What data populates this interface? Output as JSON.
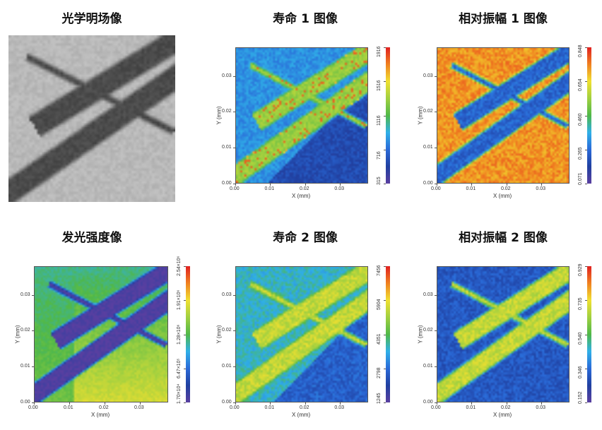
{
  "panels": [
    {
      "id": "optical",
      "title": "光学明场像",
      "type": "image"
    },
    {
      "id": "lifetime1",
      "title": "寿命 1 图像",
      "colorbar": [
        "315",
        "716",
        "1116",
        "1516",
        "1916"
      ]
    },
    {
      "id": "amplitude1",
      "title": "相对振幅 1 图像",
      "colorbar": [
        "0.071",
        "0.265",
        "0.460",
        "0.654",
        "0.848"
      ]
    },
    {
      "id": "luminescence",
      "title": "发光强度像",
      "colorbar": [
        "1.70×10⁴",
        "6.47×10⁵",
        "1.28×10⁶",
        "1.91×10⁶",
        "2.54×10⁶"
      ]
    },
    {
      "id": "lifetime2",
      "title": "寿命 2 图像",
      "colorbar": [
        "1245",
        "2798",
        "4351",
        "5904",
        "7456"
      ]
    },
    {
      "id": "amplitude2",
      "title": "相对振幅 2 图像",
      "colorbar": [
        "0.152",
        "0.346",
        "0.540",
        "0.735",
        "0.929"
      ]
    }
  ],
  "axes": {
    "xlabel": "X (mm)",
    "ylabel": "Y (mm)",
    "xticks": [
      "0.00",
      "0.01",
      "0.02",
      "0.03"
    ],
    "yticks": [
      "0.00",
      "0.01",
      "0.02",
      "0.03"
    ]
  },
  "chart_data": [
    {
      "type": "heatmap",
      "title": "寿命 1 图像",
      "xlabel": "X (mm)",
      "ylabel": "Y (mm)",
      "xlim": [
        0,
        0.038
      ],
      "ylim": [
        0,
        0.038
      ],
      "colorbar_range": [
        315,
        1916
      ],
      "colormap": "rainbow",
      "features": "bands high (green-yellow), background low (blue)"
    },
    {
      "type": "heatmap",
      "title": "相对振幅 1 图像",
      "xlabel": "X (mm)",
      "ylabel": "Y (mm)",
      "xlim": [
        0,
        0.038
      ],
      "ylim": [
        0,
        0.038
      ],
      "colorbar_range": [
        0.071,
        0.848
      ],
      "colormap": "rainbow",
      "features": "bands low (blue), background high (orange)"
    },
    {
      "type": "heatmap",
      "title": "发光强度像",
      "xlabel": "X (mm)",
      "ylabel": "Y (mm)",
      "xlim": [
        0,
        0.038
      ],
      "ylim": [
        0,
        0.038
      ],
      "colorbar_range": [
        17000,
        2540000
      ],
      "colormap": "rainbow",
      "features": "bands low (purple), background mid (cyan-green)"
    },
    {
      "type": "heatmap",
      "title": "寿命 2 图像",
      "xlabel": "X (mm)",
      "ylabel": "Y (mm)",
      "xlim": [
        0,
        0.038
      ],
      "ylim": [
        0,
        0.038
      ],
      "colorbar_range": [
        1245,
        7456
      ],
      "colormap": "rainbow",
      "features": "bands high (green-yellow), background low (light blue)"
    },
    {
      "type": "heatmap",
      "title": "相对振幅 2 图像",
      "xlabel": "X (mm)",
      "ylabel": "Y (mm)",
      "xlim": [
        0,
        0.038
      ],
      "ylim": [
        0,
        0.038
      ],
      "colorbar_range": [
        0.152,
        0.929
      ],
      "colormap": "rainbow",
      "features": "bands high (green-yellow), background low (dark blue)"
    }
  ],
  "colors": {
    "colormap": [
      "#5a3fa0",
      "#2040a0",
      "#2a6ad8",
      "#30b0e8",
      "#50b848",
      "#a0d040",
      "#f0e030",
      "#f08020",
      "#e02020"
    ]
  }
}
